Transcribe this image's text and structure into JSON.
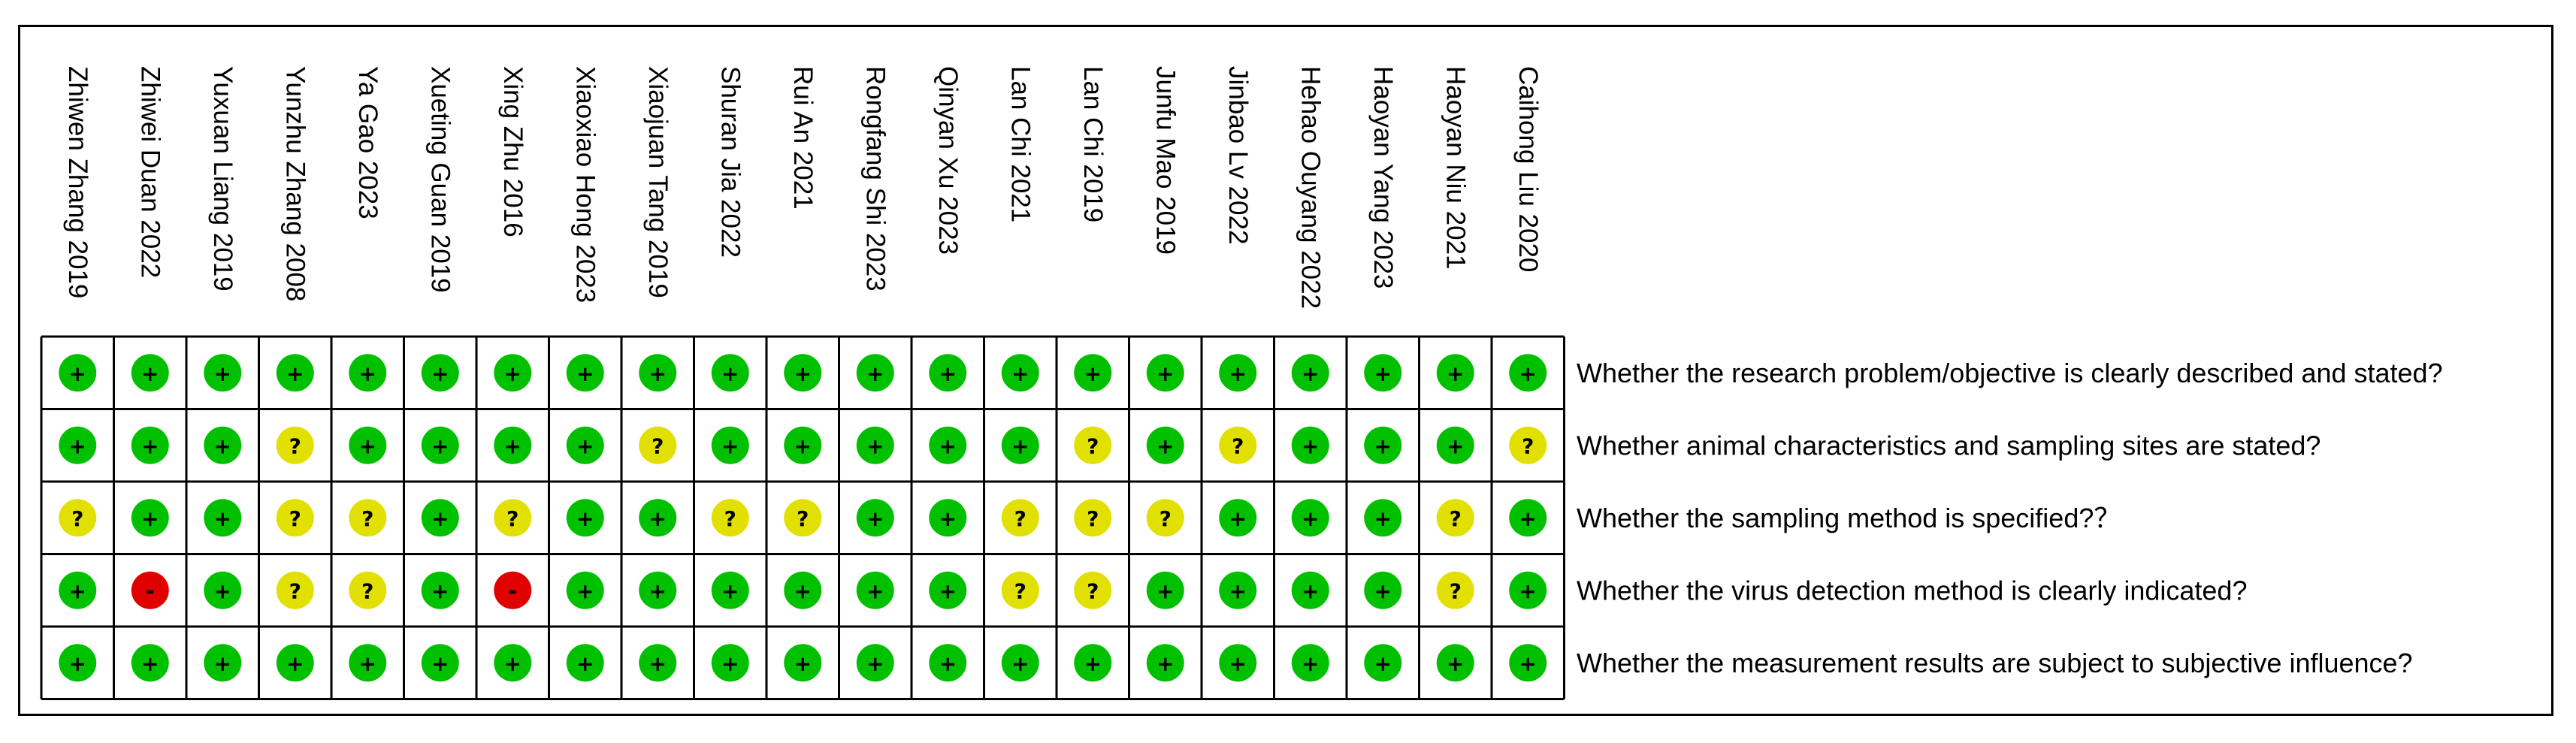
{
  "chart_data": {
    "type": "table",
    "studies": [
      "Zhiwen Zhang 2019",
      "Zhiwei Duan 2022",
      "Yuxuan Liang 2019",
      "Yunzhu Zhang 2008",
      "Ya Gao 2023",
      "Xueting Guan 2019",
      "Xing Zhu 2016",
      "Xiaoxiao Hong 2023",
      "Xiaojuan Tang 2019",
      "Shuran Jia 2022",
      "Rui An 2021",
      "Rongfang Shi 2023",
      "Qinyan Xu 2023",
      "Lan Chi 2021",
      "Lan Chi 2019",
      "Junfu Mao 2019",
      "Jinbao Lv 2022",
      "Hehao Ouyang 2022",
      "Haoyan Yang 2023",
      "Haoyan Niu 2021",
      "Caihong Liu 2020"
    ],
    "criteria": [
      "Whether the research problem/objective is clearly described and stated?",
      "Whether animal characteristics and sampling sites are stated?",
      "Whether the sampling method is specified?？",
      "Whether the virus detection method is clearly indicated?",
      "Whether the measurement results are subject to subjective influence?"
    ],
    "ratings": [
      [
        "+",
        "+",
        "+",
        "+",
        "+",
        "+",
        "+",
        "+",
        "+",
        "+",
        "+",
        "+",
        "+",
        "+",
        "+",
        "+",
        "+",
        "+",
        "+",
        "+",
        "+"
      ],
      [
        "+",
        "+",
        "+",
        "?",
        "+",
        "+",
        "+",
        "+",
        "?",
        "+",
        "+",
        "+",
        "+",
        "+",
        "?",
        "+",
        "?",
        "+",
        "+",
        "+",
        "?"
      ],
      [
        "?",
        "+",
        "+",
        "?",
        "?",
        "+",
        "?",
        "+",
        "+",
        "?",
        "?",
        "+",
        "+",
        "?",
        "?",
        "?",
        "+",
        "+",
        "+",
        "?",
        "+"
      ],
      [
        "+",
        "-",
        "+",
        "?",
        "?",
        "+",
        "-",
        "+",
        "+",
        "+",
        "+",
        "+",
        "+",
        "?",
        "?",
        "+",
        "+",
        "+",
        "+",
        "?",
        "+"
      ],
      [
        "+",
        "+",
        "+",
        "+",
        "+",
        "+",
        "+",
        "+",
        "+",
        "+",
        "+",
        "+",
        "+",
        "+",
        "+",
        "+",
        "+",
        "+",
        "+",
        "+",
        "+"
      ]
    ],
    "symbols": {
      "low": "+",
      "unclear": "?",
      "high": "-"
    },
    "colors": {
      "low": "#00c000",
      "unclear": "#e2e000",
      "high": "#e00000",
      "grid": "#000000"
    }
  }
}
